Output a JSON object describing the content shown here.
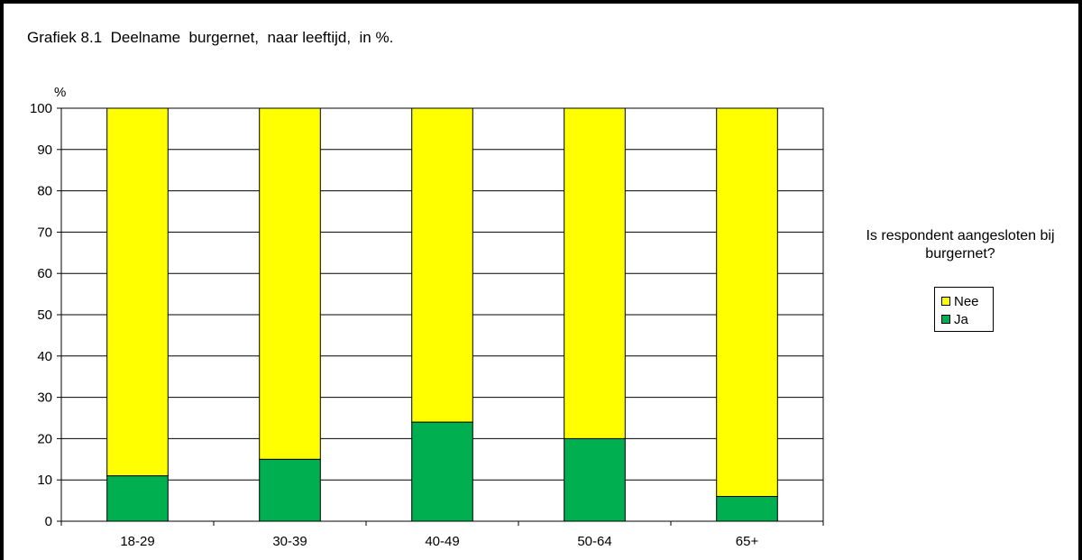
{
  "chart_data": {
    "type": "bar",
    "stacked": true,
    "title": "Grafiek 8.1  Deelname  burgernet,  naar leeftijd,  in %.",
    "ylabel": "%",
    "xlabel": "",
    "ylim": [
      0,
      100
    ],
    "yticks": [
      0,
      10,
      20,
      30,
      40,
      50,
      60,
      70,
      80,
      90,
      100
    ],
    "grid": true,
    "categories": [
      "18-29",
      "30-39",
      "40-49",
      "50-64",
      "65+"
    ],
    "series": [
      {
        "name": "Ja",
        "color": "#00b050",
        "values": [
          11,
          15,
          24,
          20,
          6
        ]
      },
      {
        "name": "Nee",
        "color": "#ffff00",
        "values": [
          89,
          85,
          76,
          80,
          94
        ]
      }
    ],
    "legend": {
      "title": "Is respondent aangesloten bij burgernet?",
      "placement": "right",
      "order": [
        "Nee",
        "Ja"
      ]
    }
  }
}
